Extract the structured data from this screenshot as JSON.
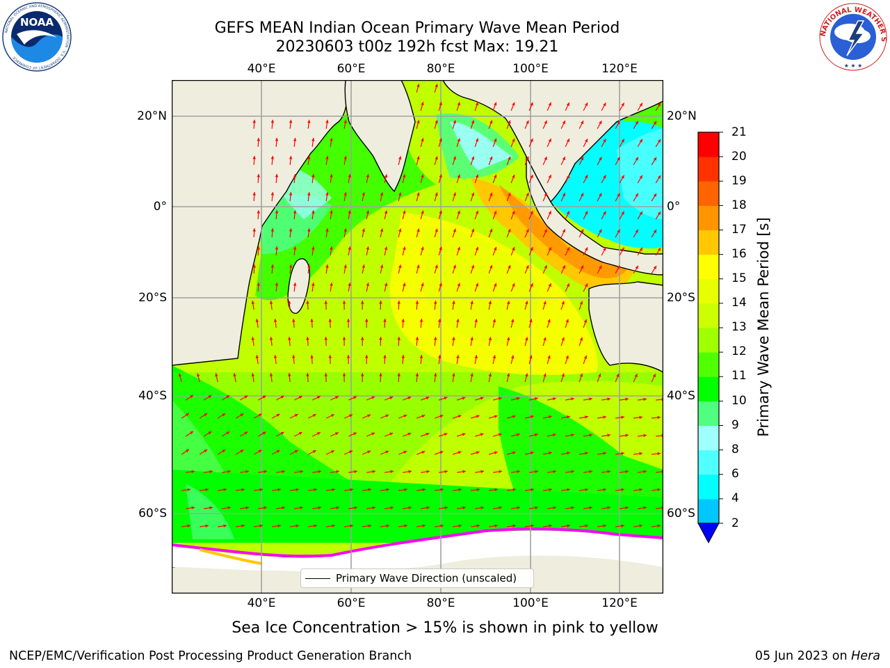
{
  "header": {
    "title_line1": "GEFS MEAN Indian Ocean Primary Wave Mean Period",
    "title_line2": "20230603 t00z 192h fcst   Max: 19.21"
  },
  "map": {
    "lon_ticks": [
      "40°E",
      "60°E",
      "80°E",
      "100°E",
      "120°E"
    ],
    "lat_ticks": [
      "20°N",
      "0°",
      "20°S",
      "40°S",
      "60°S"
    ],
    "legend_label": "Primary Wave Direction (unscaled)",
    "land_color": "#efedde",
    "ice_color": "#ffffff"
  },
  "colorbar": {
    "title": "Primary Wave Mean Period [s]",
    "tick_labels": [
      "2",
      "4",
      "6",
      "8",
      "9",
      "10",
      "11",
      "12",
      "13",
      "14",
      "15",
      "16",
      "17",
      "18",
      "19",
      "20",
      "21"
    ],
    "colors": [
      "#0050ff",
      "#00c8ff",
      "#00ffff",
      "#50ffff",
      "#a0ffff",
      "#50ff80",
      "#00ff00",
      "#50ff00",
      "#a0ff00",
      "#ccff00",
      "#e8ff00",
      "#ffff00",
      "#ffc800",
      "#ff9600",
      "#ff6400",
      "#ff3200",
      "#ff0000"
    ],
    "under_color": "#0000ff"
  },
  "caption": "Sea Ice Concentration > 15% is shown in pink to yellow",
  "footer": {
    "left": "NCEP/EMC/Verification Post Processing Product Generation Branch",
    "date": "05 Jun 2023 on",
    "host": "Hera"
  },
  "logos": {
    "noaa_text": "NOAA",
    "noaa_ring": "NATIONAL OCEANIC AND ATMOSPHERIC ADMINISTRATION · U.S. DEPARTMENT OF COMMERCE",
    "nws_ring": "NATIONAL WEATHER SERVICE"
  }
}
